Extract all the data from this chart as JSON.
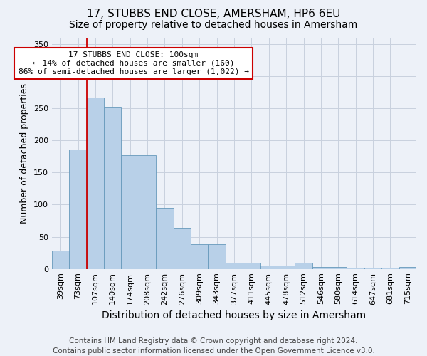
{
  "title": "17, STUBBS END CLOSE, AMERSHAM, HP6 6EU",
  "subtitle": "Size of property relative to detached houses in Amersham",
  "xlabel": "Distribution of detached houses by size in Amersham",
  "ylabel": "Number of detached properties",
  "footer_line1": "Contains HM Land Registry data © Crown copyright and database right 2024.",
  "footer_line2": "Contains public sector information licensed under the Open Government Licence v3.0.",
  "categories": [
    "39sqm",
    "73sqm",
    "107sqm",
    "140sqm",
    "174sqm",
    "208sqm",
    "242sqm",
    "276sqm",
    "309sqm",
    "343sqm",
    "377sqm",
    "411sqm",
    "445sqm",
    "478sqm",
    "512sqm",
    "546sqm",
    "580sqm",
    "614sqm",
    "647sqm",
    "681sqm",
    "715sqm"
  ],
  "values": [
    28,
    186,
    267,
    252,
    177,
    177,
    95,
    64,
    38,
    38,
    10,
    10,
    5,
    5,
    10,
    3,
    3,
    2,
    2,
    2,
    3
  ],
  "bar_color": "#b8d0e8",
  "bar_edge_color": "#6699bb",
  "bg_color": "#edf1f8",
  "annotation_text": "17 STUBBS END CLOSE: 100sqm\n← 14% of detached houses are smaller (160)\n86% of semi-detached houses are larger (1,022) →",
  "annotation_box_facecolor": "#ffffff",
  "annotation_box_edgecolor": "#cc0000",
  "vline_color": "#cc0000",
  "vline_x_idx": 2,
  "ylim": [
    0,
    360
  ],
  "yticks": [
    0,
    50,
    100,
    150,
    200,
    250,
    300,
    350
  ],
  "grid_color": "#c8d0de",
  "title_fontsize": 11,
  "subtitle_fontsize": 10,
  "xlabel_fontsize": 10,
  "ylabel_fontsize": 9,
  "tick_fontsize": 8,
  "footer_fontsize": 7.5,
  "annotation_fontsize": 8
}
